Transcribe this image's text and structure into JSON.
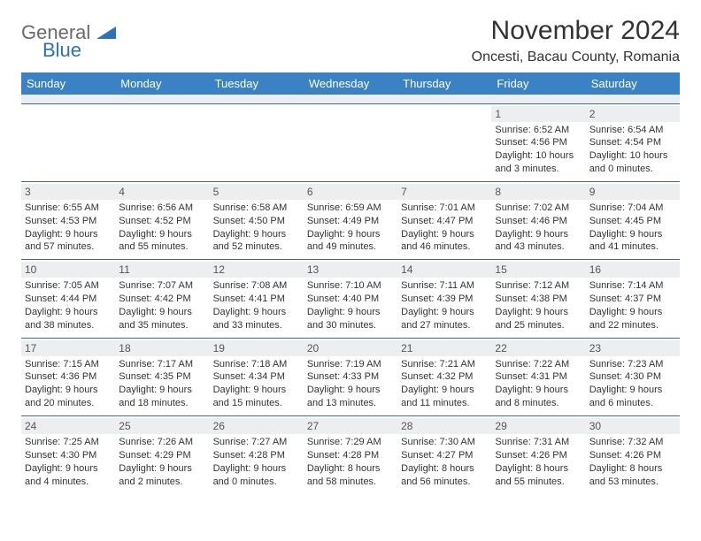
{
  "brand": {
    "part1": "General",
    "part2": "Blue"
  },
  "title": "November 2024",
  "location": "Oncesti, Bacau County, Romania",
  "colors": {
    "header_bg": "#3a82c4",
    "header_text": "#ffffff",
    "daynum_bg": "#eceeef",
    "border": "#3a6a9a",
    "text": "#333333",
    "logo_gray": "#6a6a6a",
    "logo_blue": "#2d72b8"
  },
  "day_headers": [
    "Sunday",
    "Monday",
    "Tuesday",
    "Wednesday",
    "Thursday",
    "Friday",
    "Saturday"
  ],
  "weeks": [
    [
      null,
      null,
      null,
      null,
      null,
      {
        "n": "1",
        "sunrise": "Sunrise: 6:52 AM",
        "sunset": "Sunset: 4:56 PM",
        "day1": "Daylight: 10 hours",
        "day2": "and 3 minutes."
      },
      {
        "n": "2",
        "sunrise": "Sunrise: 6:54 AM",
        "sunset": "Sunset: 4:54 PM",
        "day1": "Daylight: 10 hours",
        "day2": "and 0 minutes."
      }
    ],
    [
      {
        "n": "3",
        "sunrise": "Sunrise: 6:55 AM",
        "sunset": "Sunset: 4:53 PM",
        "day1": "Daylight: 9 hours",
        "day2": "and 57 minutes."
      },
      {
        "n": "4",
        "sunrise": "Sunrise: 6:56 AM",
        "sunset": "Sunset: 4:52 PM",
        "day1": "Daylight: 9 hours",
        "day2": "and 55 minutes."
      },
      {
        "n": "5",
        "sunrise": "Sunrise: 6:58 AM",
        "sunset": "Sunset: 4:50 PM",
        "day1": "Daylight: 9 hours",
        "day2": "and 52 minutes."
      },
      {
        "n": "6",
        "sunrise": "Sunrise: 6:59 AM",
        "sunset": "Sunset: 4:49 PM",
        "day1": "Daylight: 9 hours",
        "day2": "and 49 minutes."
      },
      {
        "n": "7",
        "sunrise": "Sunrise: 7:01 AM",
        "sunset": "Sunset: 4:47 PM",
        "day1": "Daylight: 9 hours",
        "day2": "and 46 minutes."
      },
      {
        "n": "8",
        "sunrise": "Sunrise: 7:02 AM",
        "sunset": "Sunset: 4:46 PM",
        "day1": "Daylight: 9 hours",
        "day2": "and 43 minutes."
      },
      {
        "n": "9",
        "sunrise": "Sunrise: 7:04 AM",
        "sunset": "Sunset: 4:45 PM",
        "day1": "Daylight: 9 hours",
        "day2": "and 41 minutes."
      }
    ],
    [
      {
        "n": "10",
        "sunrise": "Sunrise: 7:05 AM",
        "sunset": "Sunset: 4:44 PM",
        "day1": "Daylight: 9 hours",
        "day2": "and 38 minutes."
      },
      {
        "n": "11",
        "sunrise": "Sunrise: 7:07 AM",
        "sunset": "Sunset: 4:42 PM",
        "day1": "Daylight: 9 hours",
        "day2": "and 35 minutes."
      },
      {
        "n": "12",
        "sunrise": "Sunrise: 7:08 AM",
        "sunset": "Sunset: 4:41 PM",
        "day1": "Daylight: 9 hours",
        "day2": "and 33 minutes."
      },
      {
        "n": "13",
        "sunrise": "Sunrise: 7:10 AM",
        "sunset": "Sunset: 4:40 PM",
        "day1": "Daylight: 9 hours",
        "day2": "and 30 minutes."
      },
      {
        "n": "14",
        "sunrise": "Sunrise: 7:11 AM",
        "sunset": "Sunset: 4:39 PM",
        "day1": "Daylight: 9 hours",
        "day2": "and 27 minutes."
      },
      {
        "n": "15",
        "sunrise": "Sunrise: 7:12 AM",
        "sunset": "Sunset: 4:38 PM",
        "day1": "Daylight: 9 hours",
        "day2": "and 25 minutes."
      },
      {
        "n": "16",
        "sunrise": "Sunrise: 7:14 AM",
        "sunset": "Sunset: 4:37 PM",
        "day1": "Daylight: 9 hours",
        "day2": "and 22 minutes."
      }
    ],
    [
      {
        "n": "17",
        "sunrise": "Sunrise: 7:15 AM",
        "sunset": "Sunset: 4:36 PM",
        "day1": "Daylight: 9 hours",
        "day2": "and 20 minutes."
      },
      {
        "n": "18",
        "sunrise": "Sunrise: 7:17 AM",
        "sunset": "Sunset: 4:35 PM",
        "day1": "Daylight: 9 hours",
        "day2": "and 18 minutes."
      },
      {
        "n": "19",
        "sunrise": "Sunrise: 7:18 AM",
        "sunset": "Sunset: 4:34 PM",
        "day1": "Daylight: 9 hours",
        "day2": "and 15 minutes."
      },
      {
        "n": "20",
        "sunrise": "Sunrise: 7:19 AM",
        "sunset": "Sunset: 4:33 PM",
        "day1": "Daylight: 9 hours",
        "day2": "and 13 minutes."
      },
      {
        "n": "21",
        "sunrise": "Sunrise: 7:21 AM",
        "sunset": "Sunset: 4:32 PM",
        "day1": "Daylight: 9 hours",
        "day2": "and 11 minutes."
      },
      {
        "n": "22",
        "sunrise": "Sunrise: 7:22 AM",
        "sunset": "Sunset: 4:31 PM",
        "day1": "Daylight: 9 hours",
        "day2": "and 8 minutes."
      },
      {
        "n": "23",
        "sunrise": "Sunrise: 7:23 AM",
        "sunset": "Sunset: 4:30 PM",
        "day1": "Daylight: 9 hours",
        "day2": "and 6 minutes."
      }
    ],
    [
      {
        "n": "24",
        "sunrise": "Sunrise: 7:25 AM",
        "sunset": "Sunset: 4:30 PM",
        "day1": "Daylight: 9 hours",
        "day2": "and 4 minutes."
      },
      {
        "n": "25",
        "sunrise": "Sunrise: 7:26 AM",
        "sunset": "Sunset: 4:29 PM",
        "day1": "Daylight: 9 hours",
        "day2": "and 2 minutes."
      },
      {
        "n": "26",
        "sunrise": "Sunrise: 7:27 AM",
        "sunset": "Sunset: 4:28 PM",
        "day1": "Daylight: 9 hours",
        "day2": "and 0 minutes."
      },
      {
        "n": "27",
        "sunrise": "Sunrise: 7:29 AM",
        "sunset": "Sunset: 4:28 PM",
        "day1": "Daylight: 8 hours",
        "day2": "and 58 minutes."
      },
      {
        "n": "28",
        "sunrise": "Sunrise: 7:30 AM",
        "sunset": "Sunset: 4:27 PM",
        "day1": "Daylight: 8 hours",
        "day2": "and 56 minutes."
      },
      {
        "n": "29",
        "sunrise": "Sunrise: 7:31 AM",
        "sunset": "Sunset: 4:26 PM",
        "day1": "Daylight: 8 hours",
        "day2": "and 55 minutes."
      },
      {
        "n": "30",
        "sunrise": "Sunrise: 7:32 AM",
        "sunset": "Sunset: 4:26 PM",
        "day1": "Daylight: 8 hours",
        "day2": "and 53 minutes."
      }
    ]
  ]
}
